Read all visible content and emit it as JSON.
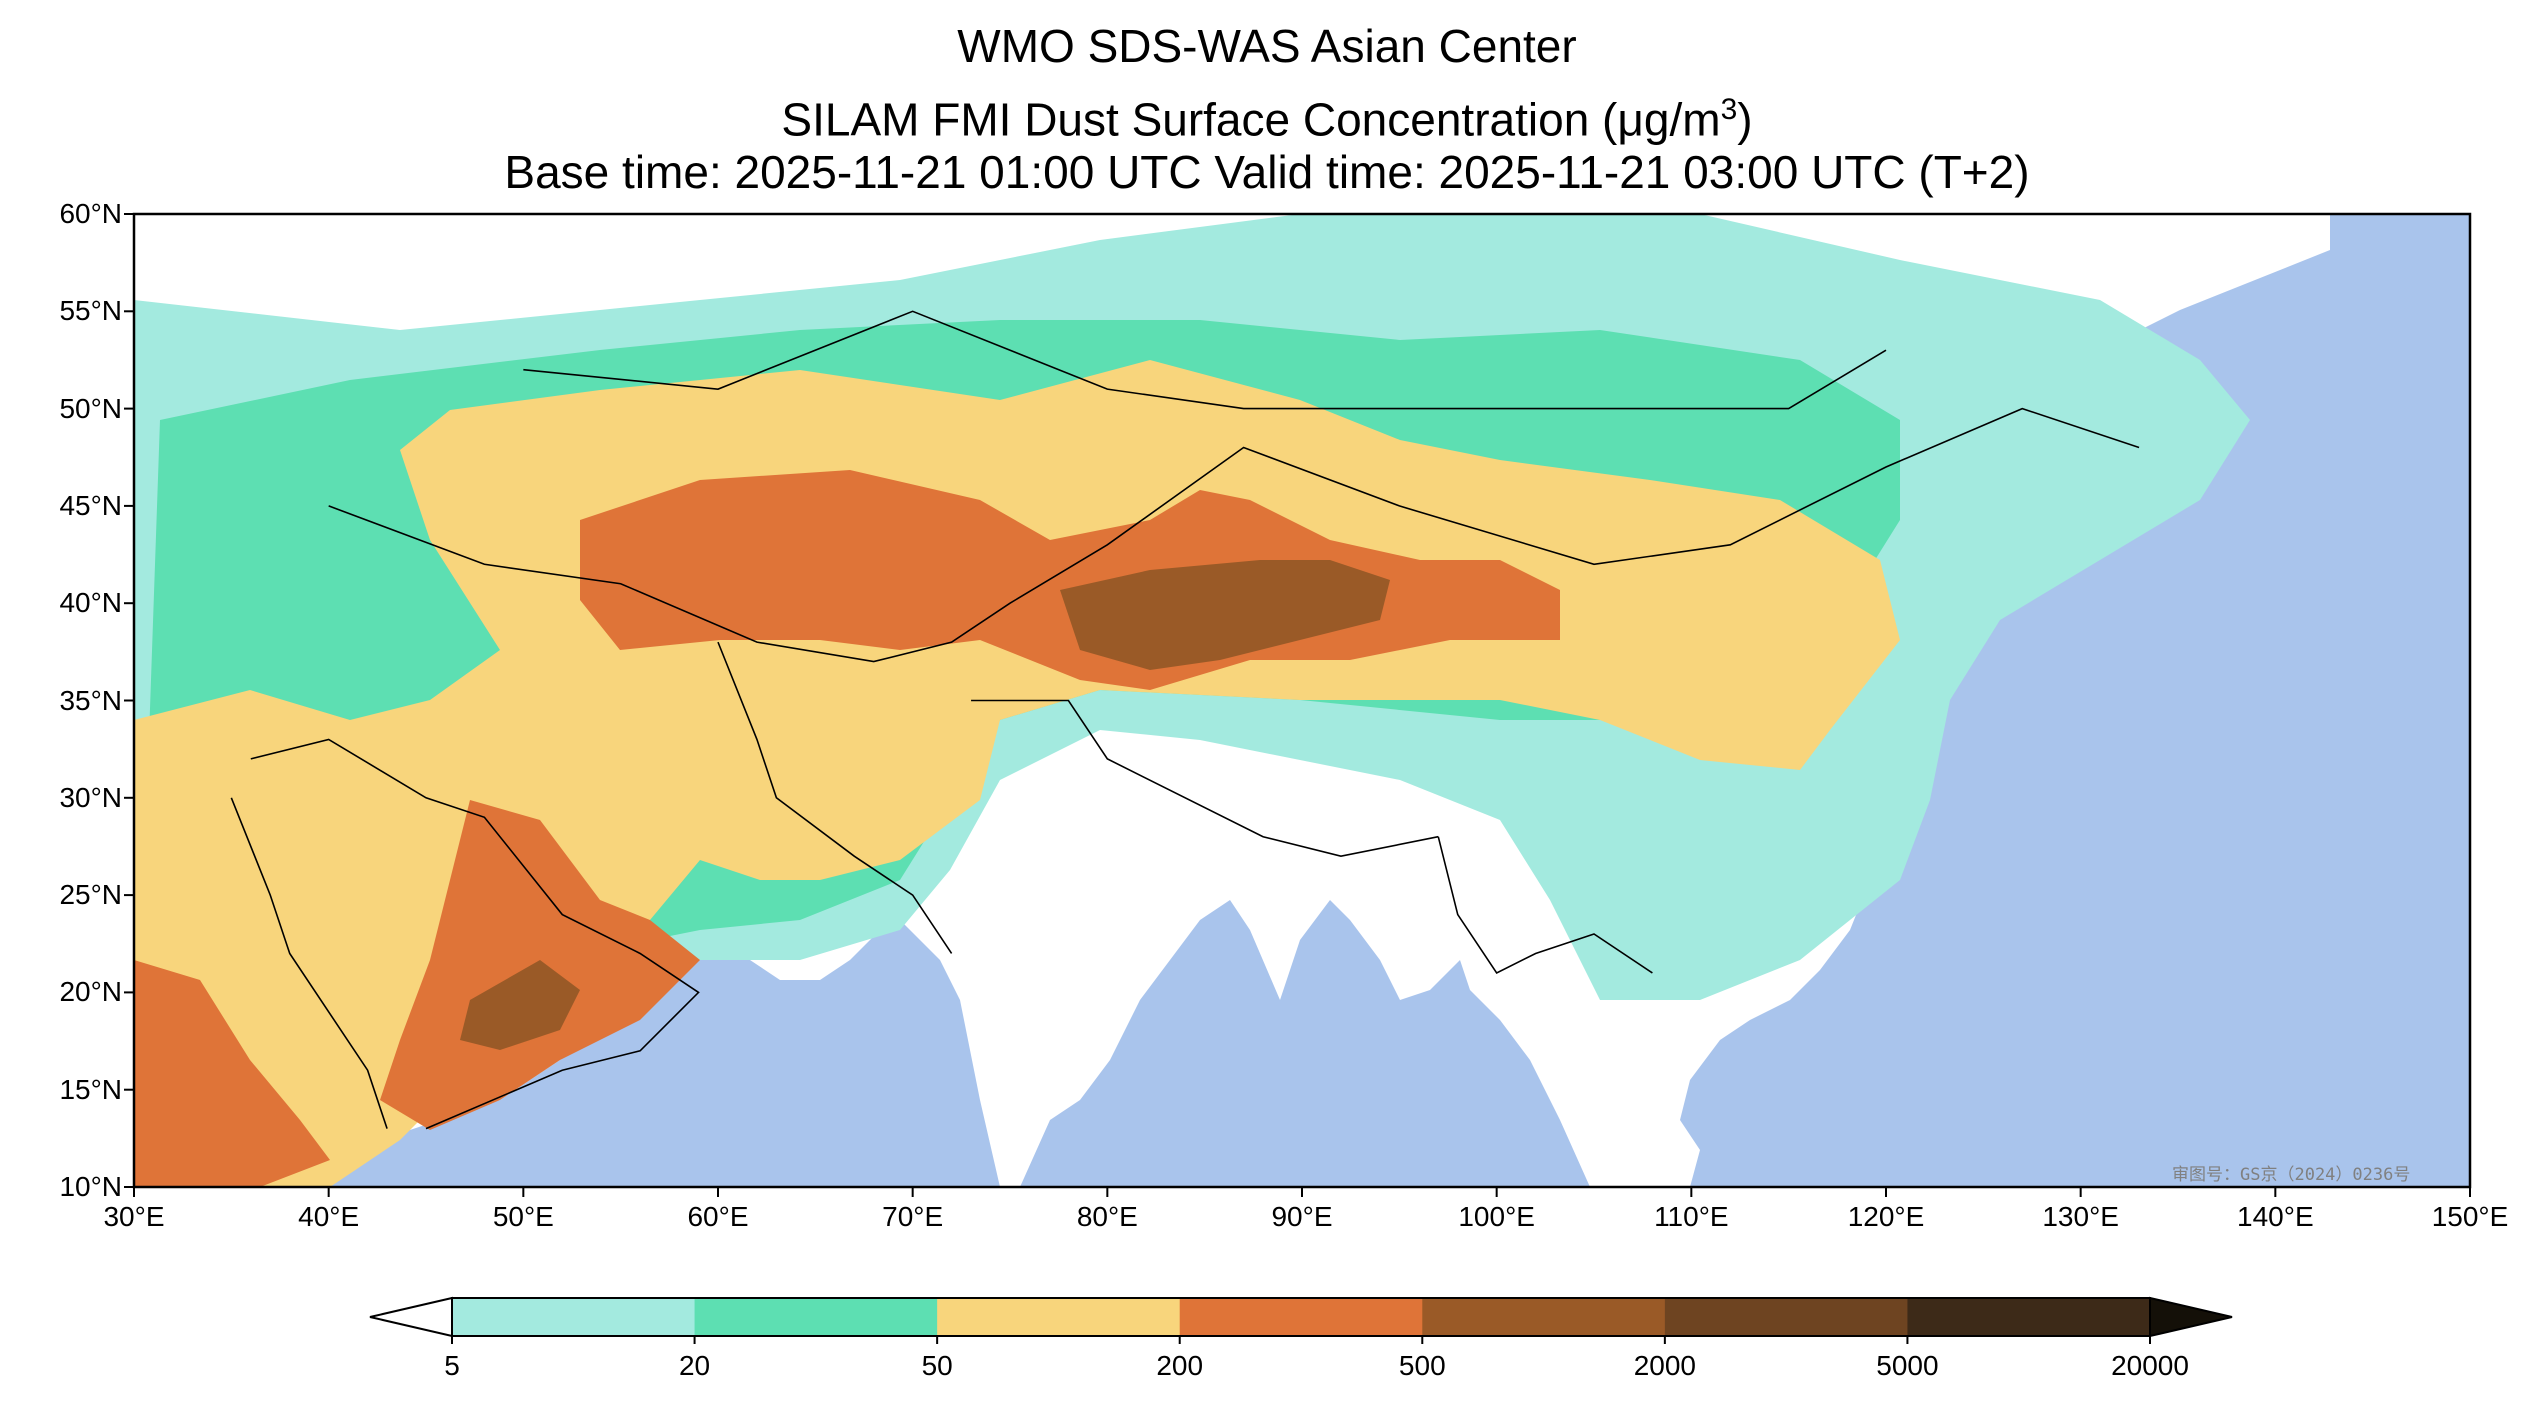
{
  "title": {
    "line1": "WMO SDS-WAS Asian Center",
    "line2_prefix": "SILAM FMI Dust Surface Concentration (",
    "line2_unit": "μg/m",
    "line2_sup": "3",
    "line2_suffix": ")",
    "line3": "Base time: 2025-11-21 01:00 UTC Valid time: 2025-11-21 03:00 UTC (T+2)"
  },
  "map": {
    "lon_range": [
      30,
      150
    ],
    "lat_range": [
      10,
      60
    ],
    "lat_ticks": [
      "10°N",
      "15°N",
      "20°N",
      "25°N",
      "30°N",
      "35°N",
      "40°N",
      "45°N",
      "50°N",
      "55°N",
      "60°N"
    ],
    "lon_ticks": [
      "30°E",
      "40°E",
      "50°E",
      "60°E",
      "70°E",
      "80°E",
      "90°E",
      "100°E",
      "110°E",
      "120°E",
      "130°E",
      "140°E",
      "150°E"
    ],
    "ocean_color": "#a9c4ec",
    "land_color": "#ffffff",
    "stamp": "审图号：GS京（2024）0236号"
  },
  "colorbar": {
    "levels": [
      "5",
      "20",
      "50",
      "200",
      "500",
      "2000",
      "5000",
      "20000"
    ],
    "colors": [
      "#a3eadf",
      "#5ddfb2",
      "#f8d57c",
      "#df7438",
      "#9a5a27",
      "#6e4421",
      "#3d2a18"
    ],
    "under_color": "#ffffff",
    "over_color": "#141008"
  }
}
